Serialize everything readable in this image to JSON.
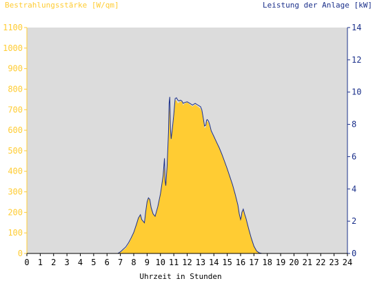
{
  "chart_data": {
    "type": "area",
    "left_axis_title": "Bestrahlungsstärke [W/qm]",
    "right_axis_title": "Leistung der Anlage [kW]",
    "xlabel": "Uhrzeit in Stunden",
    "x_ticks": [
      "0",
      "1",
      "2",
      "3",
      "4",
      "5",
      "6",
      "7",
      "8",
      "9",
      "10",
      "11",
      "12",
      "13",
      "14",
      "15",
      "16",
      "17",
      "18",
      "19",
      "20",
      "21",
      "22",
      "23",
      "24"
    ],
    "left_ticks": [
      "0",
      "100",
      "200",
      "300",
      "400",
      "500",
      "600",
      "700",
      "800",
      "900",
      "1000",
      "1100"
    ],
    "right_ticks": [
      "0",
      "2",
      "4",
      "6",
      "8",
      "10",
      "12",
      "14"
    ],
    "xlim": [
      0,
      24
    ],
    "ylim_left": [
      0,
      1100
    ],
    "ylim_right": [
      0,
      14
    ],
    "grid": false,
    "colors": {
      "plot_bg": "#dcdcdc",
      "irradiance_fill": "#ffcc33",
      "power_line": "#1a2f8a",
      "left_axis": "#ffcc33",
      "right_axis": "#1a2f8a",
      "x_axis_text": "#000000"
    },
    "series": [
      {
        "type": "area",
        "axis": "left",
        "x": [
          0,
          6.8,
          7.0,
          7.2,
          7.4,
          7.6,
          7.8,
          8.0,
          8.2,
          8.35,
          8.5,
          8.6,
          8.8,
          8.9,
          9.0,
          9.1,
          9.2,
          9.3,
          9.45,
          9.6,
          9.8,
          10.0,
          10.2,
          10.3,
          10.35,
          10.4,
          10.5,
          10.6,
          10.65,
          10.7,
          10.75,
          10.8,
          10.9,
          11.0,
          11.05,
          11.1,
          11.2,
          11.3,
          11.4,
          11.5,
          11.6,
          11.7,
          11.8,
          12.0,
          12.2,
          12.4,
          12.6,
          12.8,
          13.0,
          13.1,
          13.2,
          13.3,
          13.4,
          13.45,
          13.5,
          13.6,
          13.7,
          13.8,
          14.0,
          14.2,
          14.4,
          14.6,
          14.8,
          15.0,
          15.2,
          15.4,
          15.6,
          15.8,
          15.9,
          16.0,
          16.05,
          16.1,
          16.2,
          16.3,
          16.4,
          16.6,
          16.8,
          17.0,
          17.2,
          17.4,
          17.6,
          17.8,
          18.0,
          18.2,
          24
        ],
        "y": [
          0,
          0,
          5,
          15,
          25,
          45,
          70,
          100,
          140,
          175,
          190,
          165,
          150,
          200,
          250,
          270,
          260,
          220,
          190,
          180,
          230,
          290,
          380,
          420,
          350,
          330,
          420,
          560,
          680,
          720,
          600,
          550,
          600,
          660,
          700,
          745,
          745,
          730,
          735,
          740,
          740,
          720,
          730,
          735,
          725,
          715,
          725,
          715,
          705,
          690,
          650,
          610,
          615,
          640,
          645,
          635,
          615,
          590,
          565,
          540,
          510,
          480,
          445,
          410,
          370,
          330,
          285,
          235,
          190,
          165,
          175,
          200,
          215,
          190,
          170,
          120,
          75,
          35,
          12,
          3,
          0,
          0,
          0,
          0,
          0
        ]
      },
      {
        "type": "line",
        "axis": "right",
        "x": [
          0,
          6.8,
          7.0,
          7.2,
          7.4,
          7.6,
          7.8,
          8.0,
          8.2,
          8.35,
          8.5,
          8.6,
          8.8,
          8.9,
          9.0,
          9.1,
          9.2,
          9.3,
          9.45,
          9.6,
          9.8,
          10.0,
          10.2,
          10.3,
          10.35,
          10.4,
          10.5,
          10.6,
          10.65,
          10.7,
          10.75,
          10.8,
          10.9,
          11.0,
          11.05,
          11.1,
          11.2,
          11.3,
          11.4,
          11.5,
          11.6,
          11.7,
          11.8,
          12.0,
          12.2,
          12.4,
          12.6,
          12.8,
          13.0,
          13.1,
          13.2,
          13.3,
          13.4,
          13.45,
          13.5,
          13.6,
          13.7,
          13.8,
          14.0,
          14.2,
          14.4,
          14.6,
          14.8,
          15.0,
          15.2,
          15.4,
          15.6,
          15.8,
          15.9,
          16.0,
          16.05,
          16.1,
          16.2,
          16.3,
          16.4,
          16.6,
          16.8,
          17.0,
          17.2,
          17.4,
          17.6,
          17.8,
          18.0,
          18.2,
          24
        ],
        "y": [
          0,
          0,
          0.1,
          0.25,
          0.4,
          0.65,
          0.95,
          1.3,
          1.8,
          2.2,
          2.4,
          2.1,
          1.9,
          2.6,
          3.2,
          3.45,
          3.35,
          2.85,
          2.45,
          2.3,
          2.9,
          3.7,
          4.8,
          5.9,
          4.5,
          4.2,
          5.4,
          7.5,
          9.3,
          9.7,
          7.7,
          7.1,
          7.8,
          8.6,
          9.1,
          9.6,
          9.65,
          9.5,
          9.45,
          9.5,
          9.45,
          9.3,
          9.35,
          9.4,
          9.3,
          9.2,
          9.3,
          9.2,
          9.1,
          8.9,
          8.4,
          7.9,
          7.95,
          8.25,
          8.3,
          8.2,
          7.95,
          7.6,
          7.25,
          6.9,
          6.55,
          6.15,
          5.7,
          5.25,
          4.75,
          4.25,
          3.65,
          3.0,
          2.45,
          2.1,
          2.25,
          2.55,
          2.75,
          2.45,
          2.2,
          1.55,
          0.95,
          0.45,
          0.15,
          0.04,
          0,
          0,
          0,
          0,
          0
        ]
      }
    ]
  }
}
